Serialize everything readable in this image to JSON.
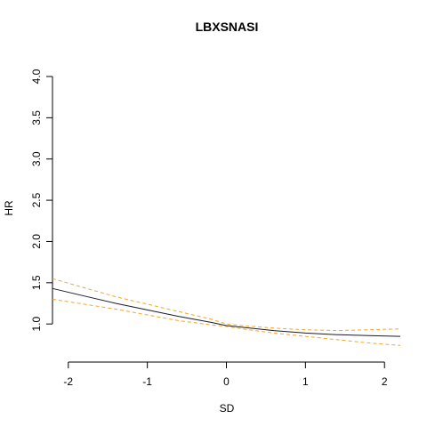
{
  "chart_data": {
    "type": "line",
    "title": "LBXSNASI",
    "xlabel": "SD",
    "ylabel": "HR",
    "xlim": [
      -2.2,
      2.2
    ],
    "ylim": [
      0.7,
      4.0
    ],
    "xticks": [
      -2,
      -1,
      0,
      1,
      2
    ],
    "xtick_labels": [
      "-2",
      "-1",
      "0",
      "1",
      "2"
    ],
    "yticks": [
      1.0,
      1.5,
      2.0,
      2.5,
      3.0,
      3.5,
      4.0
    ],
    "ytick_labels": [
      "1.0",
      "1.5",
      "2.0",
      "2.5",
      "3.0",
      "3.5",
      "4.0"
    ],
    "grid": false,
    "colors": {
      "estimate": "#1a1a2e",
      "ci": "#f5a623"
    },
    "x": [
      -2.2,
      -1.8,
      -1.4,
      -1.0,
      -0.6,
      -0.2,
      0.0,
      0.2,
      0.6,
      1.0,
      1.4,
      1.8,
      2.2
    ],
    "series": [
      {
        "role": "estimate",
        "values": [
          1.43,
          1.34,
          1.25,
          1.17,
          1.09,
          1.02,
          0.98,
          0.96,
          0.92,
          0.89,
          0.87,
          0.86,
          0.85
        ]
      },
      {
        "role": "upper",
        "values": [
          1.55,
          1.44,
          1.33,
          1.24,
          1.15,
          1.06,
          1.0,
          0.98,
          0.95,
          0.93,
          0.92,
          0.93,
          0.94
        ]
      },
      {
        "role": "lower",
        "values": [
          1.3,
          1.24,
          1.18,
          1.11,
          1.04,
          0.99,
          0.97,
          0.94,
          0.89,
          0.85,
          0.81,
          0.77,
          0.74
        ]
      }
    ]
  }
}
